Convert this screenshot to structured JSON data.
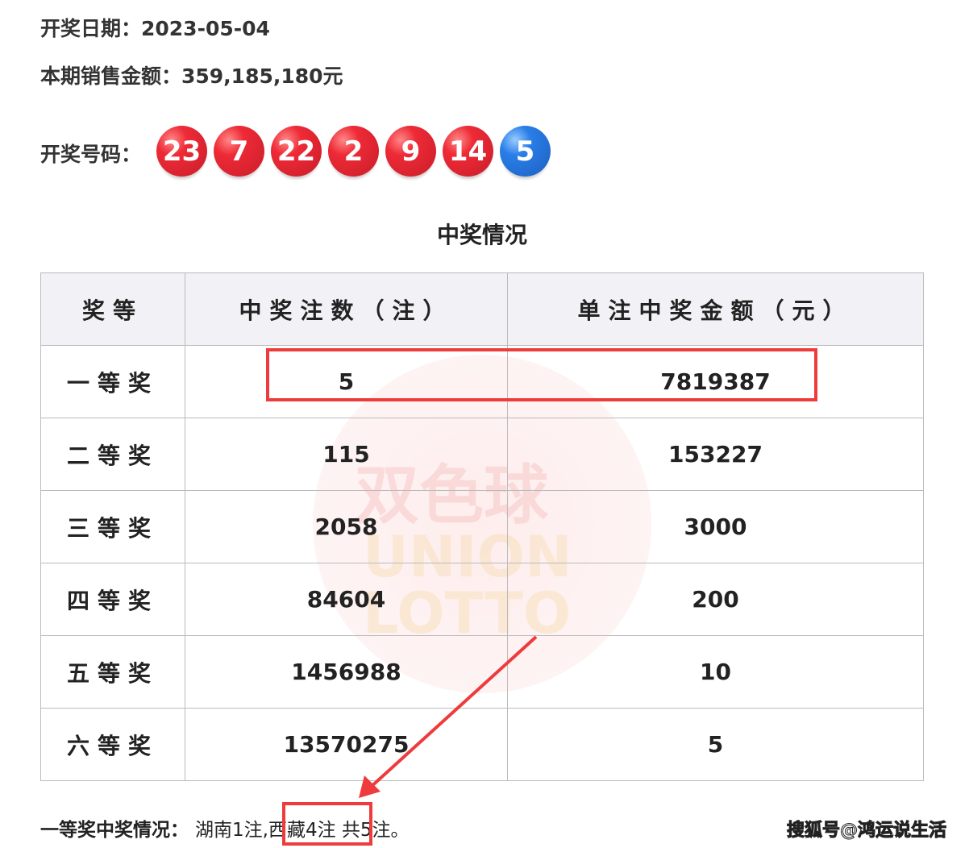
{
  "draw_date": "开奖日期：2023-05-04",
  "sales": "本期销售金额：359,185,180元",
  "numbers_label": "开奖号码：",
  "red_balls": [
    "23",
    "7",
    "22",
    "2",
    "9",
    "14"
  ],
  "blue_ball": "5",
  "section_title": "中奖情况",
  "watermark": {
    "cn": "双色球",
    "en1": "UNION",
    "en2": "LOTTO"
  },
  "table": {
    "headers": [
      "奖等",
      "中奖注数（注）",
      "单注中奖金额（元）"
    ],
    "rows": [
      [
        "一等奖",
        "5",
        "7819387"
      ],
      [
        "二等奖",
        "115",
        "153227"
      ],
      [
        "三等奖",
        "2058",
        "3000"
      ],
      [
        "四等奖",
        "84604",
        "200"
      ],
      [
        "五等奖",
        "1456988",
        "10"
      ],
      [
        "六等奖",
        "13570275",
        "5"
      ]
    ]
  },
  "first_prize_label": "一等奖中奖情况：",
  "first_prize_a": "湖南1注,",
  "first_prize_b": "西藏4注",
  "first_prize_c": " 共5注。",
  "credit": "搜狐号@鸿运说生活",
  "colors": {
    "red_ball": "#e8242f",
    "blue_ball": "#2a7ee8",
    "annotation": "#ee3b3b"
  }
}
